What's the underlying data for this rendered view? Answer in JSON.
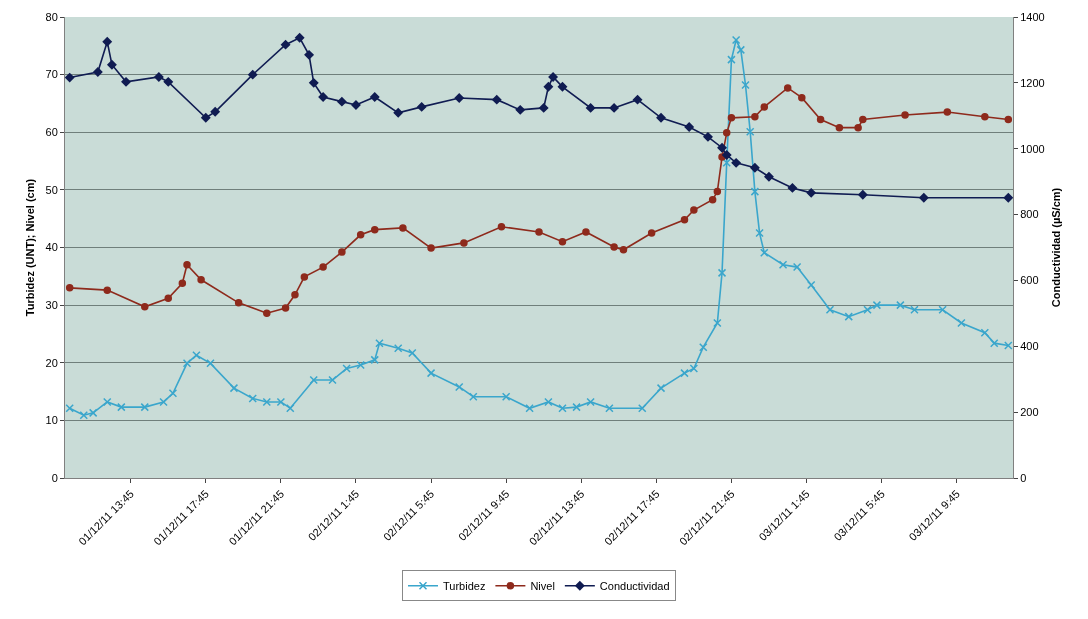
{
  "chart_data": {
    "type": "line",
    "ylabel": "Turbidez (UNT); Nivel (cm)",
    "y2label": "Conductividad (µS/cm)",
    "xlim": [
      "--12-01T10:15",
      "--12-03T12:45"
    ],
    "xticks": [
      {
        "value": "--12-01T13:45",
        "label": "01/12/11 13:45"
      },
      {
        "value": "--12-01T17:45",
        "label": "01/12/11 17:45"
      },
      {
        "value": "--12-01T21:45",
        "label": "01/12/11 21:45"
      },
      {
        "value": "--12-02T01:45",
        "label": "02/12/11 1:45"
      },
      {
        "value": "--12-02T05:45",
        "label": "02/12/11 5:45"
      },
      {
        "value": "--12-02T09:45",
        "label": "02/12/11 9:45"
      },
      {
        "value": "--12-02T13:45",
        "label": "02/12/11 13:45"
      },
      {
        "value": "--12-02T17:45",
        "label": "02/12/11 17:45"
      },
      {
        "value": "--12-02T21:45",
        "label": "02/12/11 21:45"
      },
      {
        "value": "--12-03T01:45",
        "label": "03/12/11 1:45"
      },
      {
        "value": "--12-03T05:45",
        "label": "03/12/11 5:45"
      },
      {
        "value": "--12-03T09:45",
        "label": "03/12/11 9:45"
      }
    ],
    "ylim": [
      0,
      80
    ],
    "yticks": [
      0,
      10,
      20,
      30,
      40,
      50,
      60,
      70,
      80
    ],
    "y2lim": [
      0,
      1400
    ],
    "y2ticks": [
      0,
      200,
      400,
      600,
      800,
      1000,
      1200,
      1400
    ],
    "grid": "y",
    "legend": "bottom",
    "line_style": "solid",
    "series": [
      {
        "name": "Turbidez",
        "color": "#3aa6cc",
        "marker": "cross",
        "x": [
          "--12-01T10:30",
          "--12-01T11:15",
          "--12-01T11:45",
          "--12-01T12:30",
          "--12-01T13:15",
          "--12-01T14:30",
          "--12-01T15:30",
          "--12-01T16:00",
          "--12-01T16:45",
          "--12-01T17:15",
          "--12-01T18:00",
          "--12-01T19:15",
          "--12-01T20:15",
          "--12-01T21:00",
          "--12-01T21:45",
          "--12-01T22:15",
          "--12-01T23:30",
          "--12-02T00:30",
          "--12-02T01:15",
          "--12-02T02:00",
          "--12-02T02:45",
          "--12-02T03:00",
          "--12-02T04:00",
          "--12-02T04:45",
          "--12-02T05:45",
          "--12-02T07:15",
          "--12-02T08:00",
          "--12-02T09:45",
          "--12-02T11:00",
          "--12-02T12:00",
          "--12-02T12:45",
          "--12-02T13:30",
          "--12-02T14:15",
          "--12-02T15:15",
          "--12-02T17:00",
          "--12-02T18:00",
          "--12-02T19:15",
          "--12-02T19:45",
          "--12-02T20:15",
          "--12-02T21:00",
          "--12-02T21:15",
          "--12-02T21:30",
          "--12-02T21:45",
          "--12-02T22:00",
          "--12-02T22:15",
          "--12-02T22:30",
          "--12-02T22:45",
          "--12-02T23:00",
          "--12-02T23:15",
          "--12-02T23:30",
          "--12-03T00:30",
          "--12-03T01:15",
          "--12-03T02:00",
          "--12-03T03:00",
          "--12-03T04:00",
          "--12-03T05:00",
          "--12-03T05:30",
          "--12-03T06:45",
          "--12-03T07:30",
          "--12-03T09:00",
          "--12-03T10:00",
          "--12-03T11:15",
          "--12-03T11:45",
          "--12-03T12:30"
        ],
        "values": [
          12.1,
          10.9,
          11.3,
          13.2,
          12.3,
          12.3,
          13.2,
          14.7,
          19.9,
          21.3,
          19.9,
          15.6,
          13.8,
          13.2,
          13.2,
          12.1,
          17.0,
          17.0,
          19.0,
          19.6,
          20.5,
          23.4,
          22.5,
          21.7,
          18.2,
          15.8,
          14.1,
          14.1,
          12.1,
          13.2,
          12.1,
          12.3,
          13.2,
          12.1,
          12.1,
          15.6,
          18.2,
          19.0,
          22.7,
          26.9,
          35.6,
          54.7,
          72.6,
          76.0,
          74.3,
          68.2,
          60.1,
          49.7,
          42.5,
          39.1,
          37.0,
          36.6,
          33.5,
          29.2,
          28.0,
          29.2,
          30.0,
          30.0,
          29.2,
          29.2,
          26.9,
          25.2,
          23.4,
          23.0
        ]
      },
      {
        "name": "Nivel",
        "color": "#8e2a1c",
        "marker": "circle",
        "x": [
          "--12-01T10:30",
          "--12-01T12:30",
          "--12-01T14:30",
          "--12-01T15:45",
          "--12-01T16:30",
          "--12-01T16:45",
          "--12-01T17:30",
          "--12-01T19:30",
          "--12-01T21:00",
          "--12-01T22:00",
          "--12-01T22:30",
          "--12-01T23:00",
          "--12-02T00:00",
          "--12-02T01:00",
          "--12-02T02:00",
          "--12-02T02:45",
          "--12-02T04:15",
          "--12-02T05:45",
          "--12-02T07:30",
          "--12-02T09:30",
          "--12-02T11:30",
          "--12-02T12:45",
          "--12-02T14:00",
          "--12-02T15:30",
          "--12-02T16:00",
          "--12-02T17:30",
          "--12-02T19:15",
          "--12-02T19:45",
          "--12-02T20:45",
          "--12-02T21:00",
          "--12-02T21:15",
          "--12-02T21:30",
          "--12-02T21:45",
          "--12-02T23:00",
          "--12-02T23:30",
          "--12-03T00:45",
          "--12-03T01:30",
          "--12-03T02:30",
          "--12-03T03:30",
          "--12-03T04:30",
          "--12-03T04:45",
          "--12-03T07:00",
          "--12-03T09:15",
          "--12-03T11:15",
          "--12-03T12:30"
        ],
        "values": [
          33.0,
          32.6,
          29.7,
          31.2,
          33.8,
          37.0,
          34.4,
          30.4,
          28.6,
          29.5,
          31.8,
          34.9,
          36.6,
          39.2,
          42.2,
          43.1,
          43.4,
          39.9,
          40.8,
          43.6,
          42.7,
          41.0,
          42.7,
          40.1,
          39.6,
          42.5,
          44.8,
          46.5,
          48.3,
          49.7,
          55.7,
          59.9,
          62.5,
          62.7,
          64.4,
          67.7,
          66.0,
          62.2,
          60.8,
          60.8,
          62.2,
          63.0,
          63.5,
          62.7,
          62.2
        ]
      },
      {
        "name": "Conductividad",
        "color": "#101c52",
        "marker": "diamond",
        "axis": "y2",
        "x": [
          "--12-01T10:30",
          "--12-01T12:00",
          "--12-01T12:30",
          "--12-01T12:45",
          "--12-01T13:30",
          "--12-01T15:15",
          "--12-01T15:45",
          "--12-01T17:45",
          "--12-01T18:15",
          "--12-01T20:15",
          "--12-01T22:00",
          "--12-01T22:45",
          "--12-01T23:15",
          "--12-01T23:30",
          "--12-02T00:00",
          "--12-02T01:00",
          "--12-02T01:45",
          "--12-02T02:45",
          "--12-02T04:00",
          "--12-02T05:15",
          "--12-02T07:15",
          "--12-02T09:15",
          "--12-02T10:30",
          "--12-02T11:45",
          "--12-02T12:00",
          "--12-02T12:15",
          "--12-02T12:45",
          "--12-02T14:15",
          "--12-02T15:30",
          "--12-02T16:45",
          "--12-02T18:00",
          "--12-02T19:30",
          "--12-02T20:30",
          "--12-02T21:15",
          "--12-02T21:30",
          "--12-02T22:00",
          "--12-02T23:00",
          "--12-02T23:45",
          "--12-03T01:00",
          "--12-03T02:00",
          "--12-03T04:45",
          "--12-03T08:00",
          "--12-03T12:30"
        ],
        "values": [
          1216,
          1233,
          1325,
          1255,
          1203,
          1218,
          1203,
          1094,
          1112,
          1225,
          1316,
          1337,
          1285,
          1200,
          1157,
          1143,
          1133,
          1157,
          1109,
          1127,
          1154,
          1149,
          1118,
          1124,
          1188,
          1218,
          1188,
          1124,
          1124,
          1149,
          1094,
          1066,
          1036,
          1003,
          981,
          957,
          942,
          915,
          881,
          866,
          860,
          851,
          851
        ]
      }
    ]
  }
}
